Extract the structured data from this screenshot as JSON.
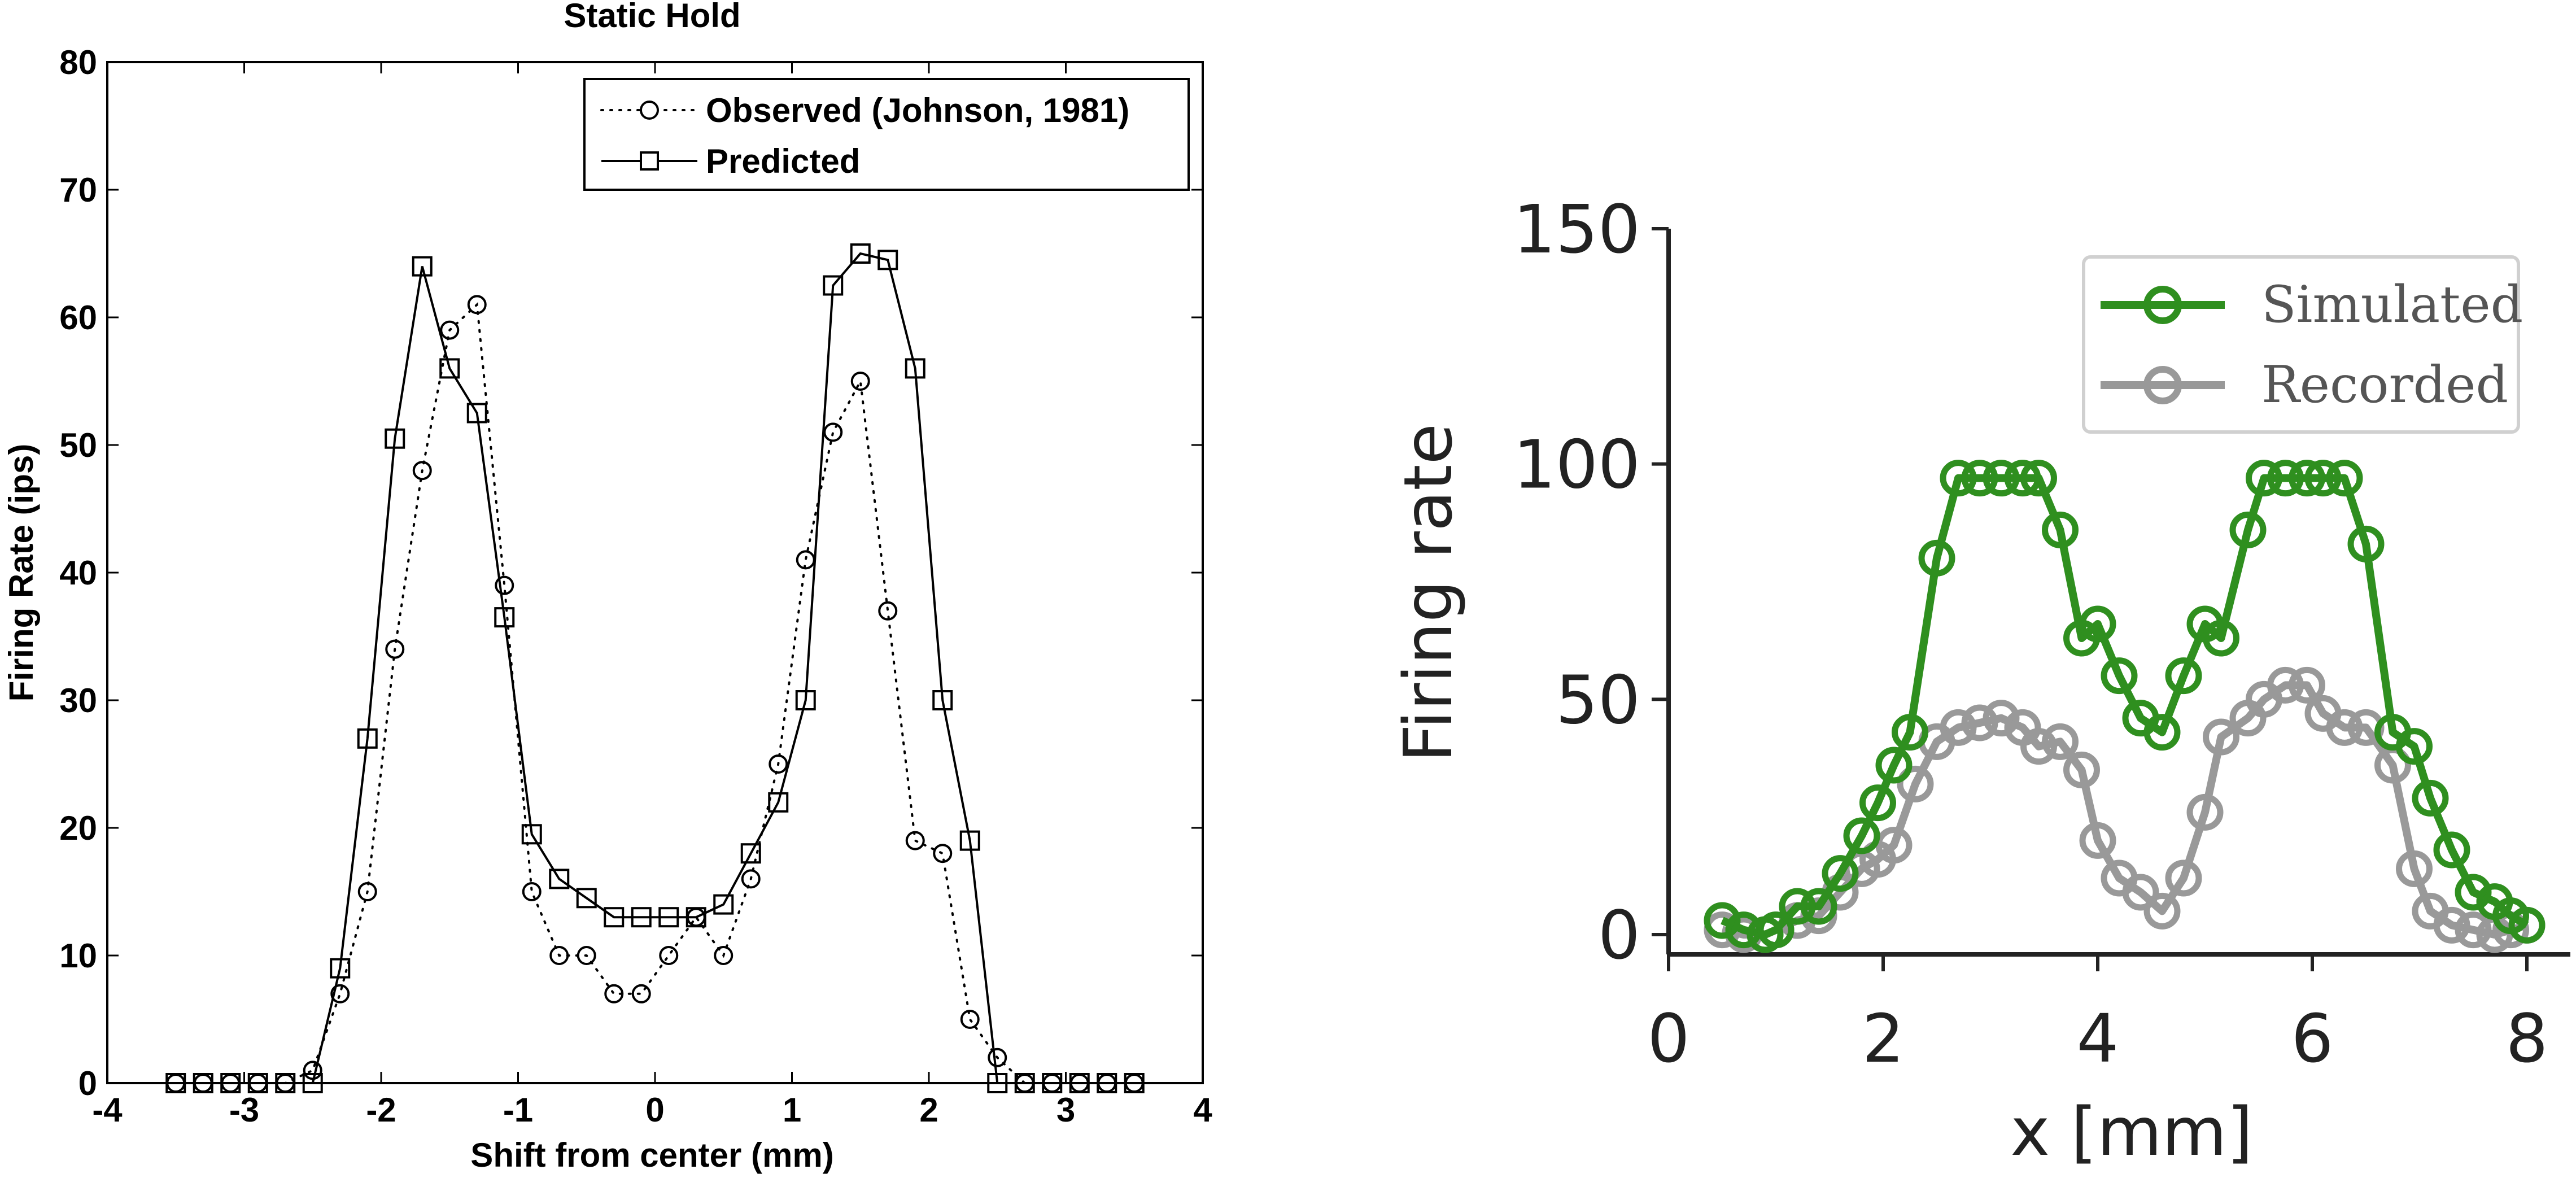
{
  "chart_data": [
    {
      "type": "line",
      "title": "Static Hold",
      "xlabel": "Shift from center (mm)",
      "ylabel": "Firing Rate (ips)",
      "xlim": [
        -4,
        4
      ],
      "ylim": [
        0,
        80
      ],
      "xticks": [
        -4,
        -3,
        -2,
        -1,
        0,
        1,
        2,
        3,
        4
      ],
      "yticks": [
        0,
        10,
        20,
        30,
        40,
        50,
        60,
        70,
        80
      ],
      "grid": false,
      "legend_position": "top-right",
      "series": [
        {
          "name": "Observed (Johnson, 1981)",
          "style": "dotted",
          "marker": "circle",
          "color": "#000000",
          "points": [
            [
              -3.5,
              0
            ],
            [
              -3.3,
              0
            ],
            [
              -3.1,
              0
            ],
            [
              -2.9,
              0
            ],
            [
              -2.7,
              0
            ],
            [
              -2.5,
              1
            ],
            [
              -2.3,
              7
            ],
            [
              -2.1,
              15
            ],
            [
              -1.9,
              34
            ],
            [
              -1.7,
              48
            ],
            [
              -1.5,
              59
            ],
            [
              -1.3,
              61
            ],
            [
              -1.1,
              39
            ],
            [
              -0.9,
              15
            ],
            [
              -0.7,
              10
            ],
            [
              -0.5,
              10
            ],
            [
              -0.3,
              7
            ],
            [
              -0.1,
              7
            ],
            [
              0.1,
              10
            ],
            [
              0.3,
              13
            ],
            [
              0.5,
              10
            ],
            [
              0.7,
              16
            ],
            [
              0.9,
              25
            ],
            [
              1.1,
              41
            ],
            [
              1.3,
              51
            ],
            [
              1.5,
              55
            ],
            [
              1.7,
              37
            ],
            [
              1.9,
              19
            ],
            [
              2.1,
              18
            ],
            [
              2.3,
              5
            ],
            [
              2.5,
              2
            ],
            [
              2.7,
              0
            ],
            [
              2.9,
              0
            ],
            [
              3.1,
              0
            ],
            [
              3.3,
              0
            ],
            [
              3.5,
              0
            ]
          ]
        },
        {
          "name": "Predicted",
          "style": "solid",
          "marker": "square",
          "color": "#000000",
          "points": [
            [
              -3.5,
              0
            ],
            [
              -3.3,
              0
            ],
            [
              -3.1,
              0
            ],
            [
              -2.9,
              0
            ],
            [
              -2.7,
              0
            ],
            [
              -2.5,
              0
            ],
            [
              -2.3,
              9
            ],
            [
              -2.1,
              27
            ],
            [
              -1.9,
              50.5
            ],
            [
              -1.7,
              64
            ],
            [
              -1.5,
              56
            ],
            [
              -1.3,
              52.5
            ],
            [
              -1.1,
              36.5
            ],
            [
              -0.9,
              19.5
            ],
            [
              -0.7,
              16
            ],
            [
              -0.5,
              14.5
            ],
            [
              -0.3,
              13
            ],
            [
              -0.1,
              13
            ],
            [
              0.1,
              13
            ],
            [
              0.3,
              13
            ],
            [
              0.5,
              14
            ],
            [
              0.7,
              18
            ],
            [
              0.9,
              22
            ],
            [
              1.1,
              30
            ],
            [
              1.3,
              62.5
            ],
            [
              1.5,
              65
            ],
            [
              1.7,
              64.5
            ],
            [
              1.9,
              56
            ],
            [
              2.1,
              30
            ],
            [
              2.3,
              19
            ],
            [
              2.5,
              0
            ],
            [
              2.7,
              0
            ],
            [
              2.9,
              0
            ],
            [
              3.1,
              0
            ],
            [
              3.3,
              0
            ],
            [
              3.5,
              0
            ]
          ]
        }
      ]
    },
    {
      "type": "line",
      "title": "",
      "xlabel": "x [mm]",
      "ylabel": "Firing rate",
      "xlim": [
        0,
        8.1
      ],
      "ylim": [
        0,
        150
      ],
      "xticks": [
        0,
        2,
        4,
        6,
        8
      ],
      "yticks": [
        0,
        50,
        100,
        150
      ],
      "grid": false,
      "legend_position": "top-right",
      "series": [
        {
          "name": "Simulated",
          "style": "solid",
          "marker": "circle",
          "color": "#2f8f1f",
          "points": [
            [
              0.5,
              3
            ],
            [
              0.7,
              1
            ],
            [
              0.9,
              0
            ],
            [
              1.0,
              1
            ],
            [
              1.2,
              6
            ],
            [
              1.4,
              6
            ],
            [
              1.6,
              13
            ],
            [
              1.8,
              21
            ],
            [
              1.95,
              28
            ],
            [
              2.1,
              36
            ],
            [
              2.25,
              43
            ],
            [
              2.5,
              80
            ],
            [
              2.7,
              97
            ],
            [
              2.9,
              97
            ],
            [
              3.1,
              97
            ],
            [
              3.3,
              97
            ],
            [
              3.45,
              97
            ],
            [
              3.65,
              86
            ],
            [
              3.85,
              63
            ],
            [
              4.0,
              66
            ],
            [
              4.2,
              55
            ],
            [
              4.4,
              46
            ],
            [
              4.6,
              43
            ],
            [
              4.8,
              55
            ],
            [
              5.0,
              66
            ],
            [
              5.15,
              63
            ],
            [
              5.4,
              86
            ],
            [
              5.55,
              97
            ],
            [
              5.75,
              97
            ],
            [
              5.95,
              97
            ],
            [
              6.1,
              97
            ],
            [
              6.3,
              97
            ],
            [
              6.5,
              83
            ],
            [
              6.75,
              43
            ],
            [
              6.95,
              40
            ],
            [
              7.1,
              29
            ],
            [
              7.3,
              18
            ],
            [
              7.5,
              9
            ],
            [
              7.7,
              7
            ],
            [
              7.85,
              4
            ],
            [
              8.0,
              2
            ]
          ]
        },
        {
          "name": "Recorded",
          "style": "solid",
          "marker": "circle",
          "color": "#999999",
          "points": [
            [
              0.5,
              1
            ],
            [
              0.7,
              0
            ],
            [
              0.9,
              0
            ],
            [
              1.0,
              1
            ],
            [
              1.2,
              3
            ],
            [
              1.4,
              4
            ],
            [
              1.6,
              9
            ],
            [
              1.8,
              14
            ],
            [
              1.95,
              16
            ],
            [
              2.1,
              19
            ],
            [
              2.3,
              32
            ],
            [
              2.5,
              41
            ],
            [
              2.7,
              44
            ],
            [
              2.9,
              45
            ],
            [
              3.1,
              46
            ],
            [
              3.3,
              44
            ],
            [
              3.45,
              40
            ],
            [
              3.65,
              41
            ],
            [
              3.85,
              35
            ],
            [
              4.0,
              20
            ],
            [
              4.2,
              12
            ],
            [
              4.4,
              9
            ],
            [
              4.6,
              5
            ],
            [
              4.8,
              12
            ],
            [
              5.0,
              26
            ],
            [
              5.15,
              42
            ],
            [
              5.4,
              46
            ],
            [
              5.55,
              50
            ],
            [
              5.75,
              53
            ],
            [
              5.95,
              53
            ],
            [
              6.1,
              47
            ],
            [
              6.3,
              44
            ],
            [
              6.5,
              44
            ],
            [
              6.75,
              36
            ],
            [
              6.95,
              14
            ],
            [
              7.1,
              5
            ],
            [
              7.3,
              2
            ],
            [
              7.5,
              1
            ],
            [
              7.7,
              0
            ],
            [
              7.85,
              1
            ],
            [
              8.0,
              2
            ]
          ]
        }
      ]
    }
  ]
}
